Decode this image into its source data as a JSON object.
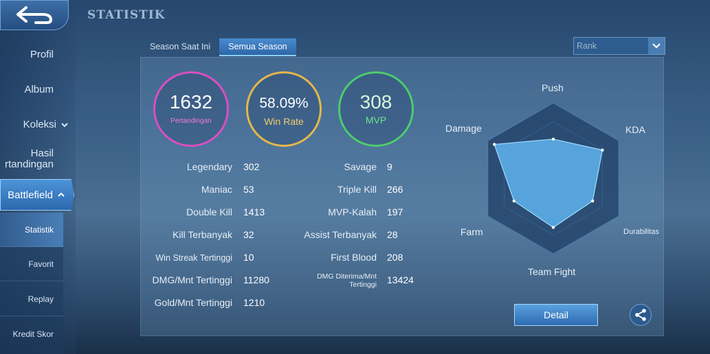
{
  "header": {
    "title": "STATISTIK"
  },
  "sidebar": {
    "items": [
      {
        "label": "Profil"
      },
      {
        "label": "Album"
      },
      {
        "label": "Koleksi"
      },
      {
        "label_line1": "Hasil",
        "label_line2": "rtandingan"
      },
      {
        "label": "Battlefield"
      }
    ],
    "sub_items": [
      {
        "label": "Statistik"
      },
      {
        "label": "Favorit"
      },
      {
        "label": "Replay"
      },
      {
        "label": "Kredit Skor"
      }
    ]
  },
  "tabs": [
    {
      "label": "Season Saat Ini"
    },
    {
      "label": "Semua Season"
    }
  ],
  "rank_select": {
    "value": "Rank"
  },
  "summary": {
    "matches": {
      "value": "1632",
      "label": "Pertandingan"
    },
    "win_rate": {
      "value": "58.09%",
      "label": "Win Rate"
    },
    "mvp": {
      "value": "308",
      "label": "MVP"
    }
  },
  "stats_left": [
    {
      "label": "Legendary",
      "value": "302"
    },
    {
      "label": "Maniac",
      "value": "53"
    },
    {
      "label": "Double Kill",
      "value": "1413"
    },
    {
      "label": "Kill Terbanyak",
      "value": "32"
    },
    {
      "label": "Win Streak Tertinggi",
      "value": "10"
    },
    {
      "label": "DMG/Mnt Tertinggi",
      "value": "11280"
    },
    {
      "label": "Gold/Mnt Tertinggi",
      "value": "1210"
    }
  ],
  "stats_right": [
    {
      "label": "Savage",
      "value": "9"
    },
    {
      "label": "Triple Kill",
      "value": "266"
    },
    {
      "label": "MVP-Kalah",
      "value": "197"
    },
    {
      "label": "Assist Terbanyak",
      "value": "28"
    },
    {
      "label": "First Blood",
      "value": "208"
    },
    {
      "label_line1": "DMG Diterima/Mnt",
      "label_line2": "Tertinggi",
      "value": "13424"
    }
  ],
  "radar": {
    "axes": [
      "Push",
      "KDA",
      "Durabilitas",
      "Team Fight",
      "Farm",
      "Damage"
    ],
    "levels": [
      0.52,
      0.75,
      0.6,
      0.65,
      0.6,
      0.9
    ],
    "fill_color": "#5fb3ee",
    "web_color": "#1f3f66"
  },
  "buttons": {
    "detail": "Detail"
  },
  "icons": {
    "back": "back-arrow-icon",
    "share": "share-icon",
    "chevron": "chevron-down-icon"
  }
}
